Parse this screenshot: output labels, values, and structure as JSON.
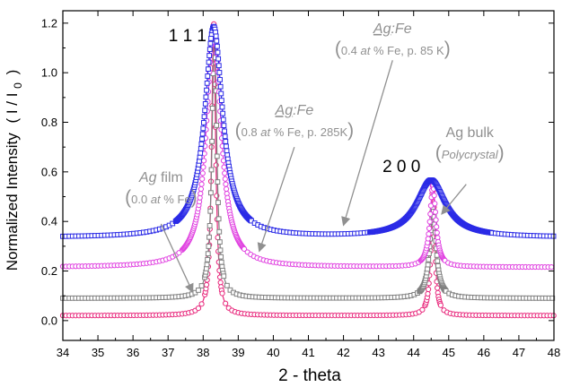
{
  "chart_data": {
    "type": "scatter",
    "xlabel": "2 - theta",
    "ylabel": "Normalized Intensity",
    "ylabel_parts": [
      "( I / I",
      "0",
      ")"
    ],
    "xlim": [
      34,
      48
    ],
    "ylim": [
      -0.08,
      1.25
    ],
    "xticks": [
      34,
      35,
      36,
      37,
      38,
      39,
      40,
      41,
      42,
      43,
      44,
      45,
      46,
      47,
      48
    ],
    "yticks": [
      0.0,
      0.2,
      0.4,
      0.6,
      0.8,
      1.0,
      1.2
    ],
    "peak_labels": [
      {
        "text": "1 1 1",
        "x": 38.3
      },
      {
        "text": "2 0 0",
        "x": 44.4
      }
    ],
    "colors": {
      "bulk": "#e8287c",
      "film": "#808080",
      "alloy_08": "#e040e0",
      "alloy_04": "#2a2ae6",
      "annotation": "#909090"
    },
    "series": [
      {
        "key": "bulk",
        "marker": "circle",
        "color": "#e8287c",
        "baseline": 0.02,
        "peaks": [
          {
            "x0": 38.3,
            "amp": 1.18,
            "gamma": 0.07
          },
          {
            "x0": 44.55,
            "amp": 0.53,
            "gamma": 0.065
          }
        ]
      },
      {
        "key": "film",
        "marker": "square",
        "color": "#808080",
        "baseline": 0.09,
        "peaks": [
          {
            "x0": 38.32,
            "amp": 1.09,
            "gamma": 0.08
          },
          {
            "x0": 44.55,
            "amp": 0.36,
            "gamma": 0.11
          }
        ]
      },
      {
        "key": "alloy_08",
        "marker": "circle",
        "color": "#e040e0",
        "baseline": 0.215,
        "peaks": [
          {
            "x0": 38.3,
            "amp": 0.97,
            "gamma": 0.25
          },
          {
            "x0": 44.55,
            "amp": 0.33,
            "gamma": 0.1
          }
        ]
      },
      {
        "key": "alloy_04",
        "marker": "square",
        "color": "#2a2ae6",
        "baseline": 0.335,
        "peaks": [
          {
            "x0": 38.3,
            "amp": 0.85,
            "gamma": 0.31
          },
          {
            "x0": 44.5,
            "amp": 0.23,
            "gamma": 0.5
          }
        ]
      }
    ],
    "annotations": [
      {
        "key": "ag-film",
        "line1": [
          {
            "t": "Ag",
            "i": true
          },
          {
            "t": " film",
            "i": false
          }
        ],
        "line2": [
          {
            "t": "(",
            "i": false,
            "big": true
          },
          {
            "t": "0.0 ",
            "i": false
          },
          {
            "t": "at",
            "i": true
          },
          {
            "t": " % Fe",
            "i": false
          },
          {
            "t": ")",
            "i": false,
            "big": true
          }
        ],
        "text_at": [
          36.8,
          0.56
        ],
        "arrow_from": [
          36.8,
          0.39
        ],
        "arrow_to": [
          37.7,
          0.115
        ]
      },
      {
        "key": "ag-fe-08",
        "line1": [
          {
            "t": "Ag",
            "i": true,
            "u": true
          },
          {
            "t": ":Fe",
            "i": true
          }
        ],
        "line2": [
          {
            "t": "(",
            "i": false,
            "big": true
          },
          {
            "t": "0.8 ",
            "i": false
          },
          {
            "t": "at",
            "i": true
          },
          {
            "t": " % Fe, p. 285K",
            "i": false
          },
          {
            "t": ")",
            "i": false,
            "big": true
          }
        ],
        "text_at": [
          40.6,
          0.83
        ],
        "arrow_from": [
          40.6,
          0.7
        ],
        "arrow_to": [
          39.6,
          0.28
        ]
      },
      {
        "key": "ag-fe-04",
        "line1": [
          {
            "t": "Ag",
            "i": true,
            "u": true
          },
          {
            "t": ":Fe",
            "i": true
          }
        ],
        "line2": [
          {
            "t": "(",
            "i": false,
            "big": true
          },
          {
            "t": "0.4 ",
            "i": false
          },
          {
            "t": "at",
            "i": true
          },
          {
            "t": " % Fe, p. 85 K",
            "i": false
          },
          {
            "t": ")",
            "i": false,
            "big": true
          }
        ],
        "text_at": [
          43.4,
          1.16
        ],
        "arrow_from": [
          43.4,
          1.05
        ],
        "arrow_to": [
          42.0,
          0.385
        ]
      },
      {
        "key": "ag-bulk",
        "line1": [
          {
            "t": "Ag bulk",
            "i": false
          }
        ],
        "line2": [
          {
            "t": "(",
            "i": false,
            "big": true
          },
          {
            "t": "Polycrystal",
            "i": true
          },
          {
            "t": ")",
            "i": false,
            "big": true
          }
        ],
        "text_at": [
          45.6,
          0.74
        ],
        "arrow_from": [
          45.5,
          0.55
        ],
        "arrow_to": [
          44.8,
          0.43
        ]
      }
    ]
  }
}
